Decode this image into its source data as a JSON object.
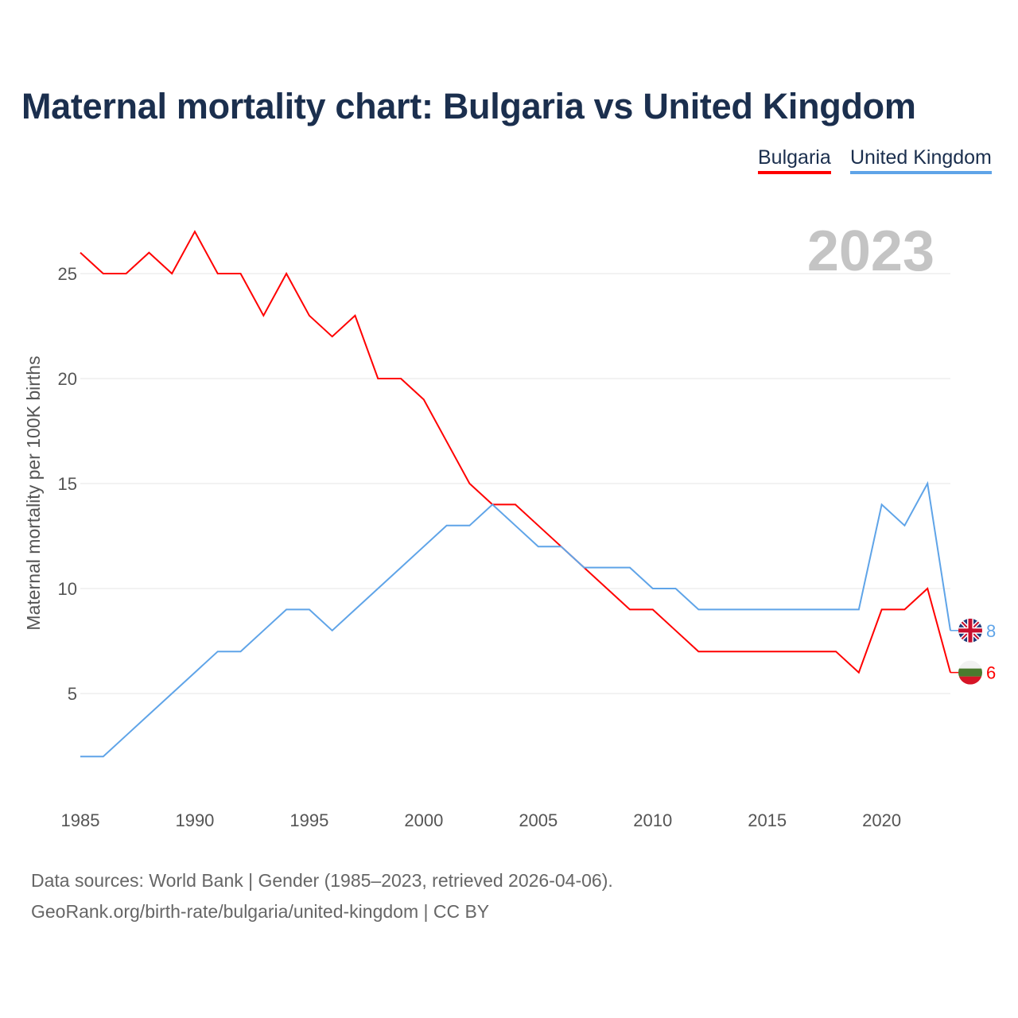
{
  "chart_data": {
    "type": "line",
    "title": "Maternal mortality chart: Bulgaria vs United Kingdom",
    "ylabel": "Maternal mortality per 100K births",
    "xlabel": "",
    "year_label": "2023",
    "xlim": [
      1985,
      2023
    ],
    "ylim": [
      0,
      27
    ],
    "x_ticks": [
      1985,
      1990,
      1995,
      2000,
      2005,
      2010,
      2015,
      2020
    ],
    "y_ticks": [
      5,
      10,
      15,
      20,
      25
    ],
    "grid": true,
    "legend_position": "top-right",
    "x": [
      1985,
      1986,
      1987,
      1988,
      1989,
      1990,
      1991,
      1992,
      1993,
      1994,
      1995,
      1996,
      1997,
      1998,
      1999,
      2000,
      2001,
      2002,
      2003,
      2004,
      2005,
      2006,
      2007,
      2008,
      2009,
      2010,
      2011,
      2012,
      2013,
      2014,
      2015,
      2016,
      2017,
      2018,
      2019,
      2020,
      2021,
      2022,
      2023
    ],
    "series": [
      {
        "name": "Bulgaria",
        "color": "#ff0000",
        "end_label": "6",
        "values": [
          26,
          25,
          25,
          26,
          25,
          27,
          25,
          25,
          23,
          25,
          23,
          22,
          23,
          20,
          20,
          19,
          17,
          15,
          14,
          14,
          13,
          12,
          11,
          10,
          9,
          9,
          8,
          7,
          7,
          7,
          7,
          7,
          7,
          7,
          6,
          9,
          9,
          10,
          6
        ]
      },
      {
        "name": "United Kingdom",
        "color": "#5fa4e8",
        "end_label": "8",
        "values": [
          2,
          2,
          3,
          4,
          5,
          6,
          7,
          7,
          8,
          9,
          9,
          8,
          9,
          10,
          11,
          12,
          13,
          13,
          14,
          13,
          12,
          12,
          11,
          11,
          11,
          10,
          10,
          9,
          9,
          9,
          9,
          9,
          9,
          9,
          9,
          14,
          13,
          15,
          8
        ]
      }
    ]
  },
  "footer": {
    "line1": "Data sources: World Bank | Gender (1985–2023, retrieved 2026-04-06).",
    "line2": "GeoRank.org/birth-rate/bulgaria/united-kingdom | CC BY"
  }
}
